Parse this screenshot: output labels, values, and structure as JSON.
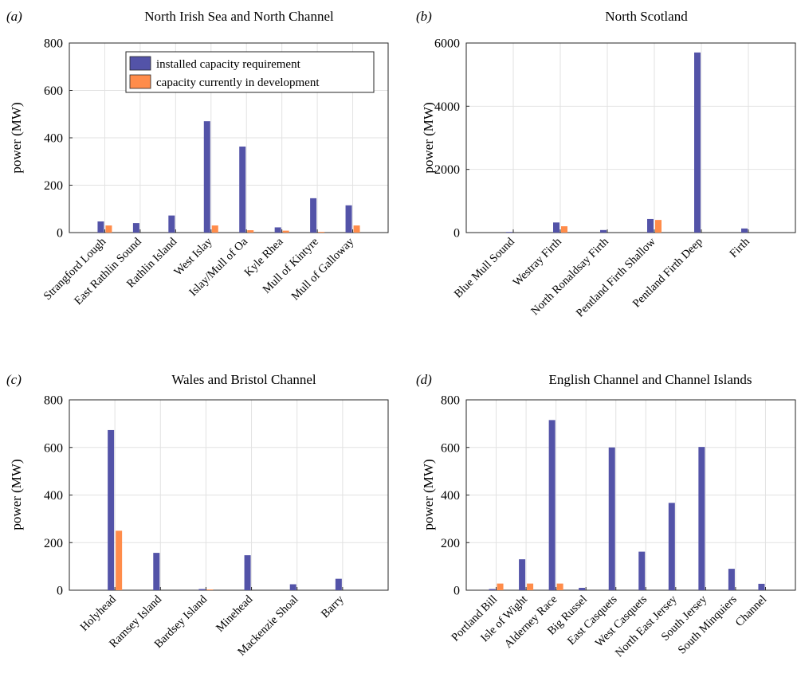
{
  "legend": {
    "installed": "installed capacity requirement",
    "development": "capacity currently in development"
  },
  "colors": {
    "installed": "#5353a8",
    "development": "#ff8c4a",
    "grid": "#e2e2e2"
  },
  "chart_data": [
    {
      "type": "bar",
      "letter": "(a)",
      "title": "North Irish Sea and North Channel",
      "ylabel": "power (MW)",
      "ylim": [
        0,
        800
      ],
      "yticks": [
        0,
        200,
        400,
        600,
        800
      ],
      "grid": true,
      "legend_position": "top",
      "categories": [
        "Strangford Lough",
        "East Rathlin Sound",
        "Rathlin Island",
        "West Islay",
        "Islay/Mull of Oa",
        "Kyle Rhea",
        "Mull of Kintyre",
        "Mull of Galloway"
      ],
      "series": [
        {
          "name": "installed capacity requirement",
          "values": [
            47,
            40,
            72,
            470,
            363,
            22,
            145,
            115
          ]
        },
        {
          "name": "capacity currently in development",
          "values": [
            30,
            0,
            0,
            30,
            10,
            8,
            3,
            30
          ]
        }
      ]
    },
    {
      "type": "bar",
      "letter": "(b)",
      "title": "North Scotland",
      "ylabel": "power (MW)",
      "ylim": [
        0,
        6000
      ],
      "yticks": [
        0,
        2000,
        4000,
        6000
      ],
      "grid": true,
      "categories": [
        "Blue Mull Sound",
        "Westray Firth",
        "North Ronaldsay Firth",
        "Pentland Firth Shallow",
        "Pentland Firth Deep",
        "Firth"
      ],
      "series": [
        {
          "name": "installed capacity requirement",
          "values": [
            20,
            320,
            80,
            430,
            5700,
            130
          ]
        },
        {
          "name": "capacity currently in development",
          "values": [
            0,
            200,
            0,
            400,
            0,
            0
          ]
        }
      ]
    },
    {
      "type": "bar",
      "letter": "(c)",
      "title": "Wales and Bristol Channel",
      "ylabel": "power (MW)",
      "ylim": [
        0,
        800
      ],
      "yticks": [
        0,
        200,
        400,
        600,
        800
      ],
      "grid": true,
      "categories": [
        "Holyhead",
        "Ramsey Island",
        "Bardsey Island",
        "Minehead",
        "Mackenzie Shoal",
        "Barry"
      ],
      "series": [
        {
          "name": "installed capacity requirement",
          "values": [
            673,
            157,
            5,
            147,
            25,
            48
          ]
        },
        {
          "name": "capacity currently in development",
          "values": [
            250,
            0,
            3,
            0,
            0,
            0
          ]
        }
      ]
    },
    {
      "type": "bar",
      "letter": "(d)",
      "title": "English Channel and Channel Islands",
      "ylabel": "power (MW)",
      "ylim": [
        0,
        800
      ],
      "yticks": [
        0,
        200,
        400,
        600,
        800
      ],
      "grid": true,
      "categories": [
        "Portland Bill",
        "Isle of Wight",
        "Alderney Race",
        "Big Russel",
        "East Casquets",
        "West Casquets",
        "North East Jersey",
        "South Jersey",
        "South Minquiers",
        "Channel"
      ],
      "series": [
        {
          "name": "installed capacity requirement",
          "values": [
            5,
            130,
            715,
            10,
            600,
            162,
            367,
            602,
            90,
            27
          ]
        },
        {
          "name": "capacity currently in development",
          "values": [
            28,
            28,
            28,
            0,
            0,
            0,
            0,
            0,
            0,
            0
          ]
        }
      ]
    }
  ]
}
